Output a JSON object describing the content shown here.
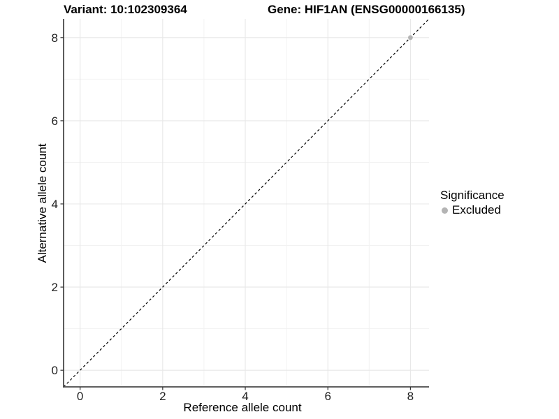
{
  "chart_data": {
    "type": "scatter",
    "title_left": "Variant: 10:102309364",
    "title_right": "Gene: HIF1AN (ENSG00000166135)",
    "xlabel": "Reference allele count",
    "ylabel": "Alternative allele count",
    "xlim": [
      -0.4,
      8.45
    ],
    "ylim": [
      -0.4,
      8.45
    ],
    "xticks": [
      0,
      2,
      4,
      6,
      8
    ],
    "yticks": [
      0,
      2,
      4,
      6,
      8
    ],
    "minor_xticks": [
      1,
      3,
      5,
      7
    ],
    "minor_yticks": [
      1,
      3,
      5,
      7
    ],
    "grid": "major and minor gridlines on white panel",
    "series": [
      {
        "name": "Excluded",
        "color": "#b4b4b4",
        "points": [
          {
            "x": 8,
            "y": 8
          }
        ]
      }
    ],
    "reference_line": {
      "kind": "identity y=x",
      "style": "dashed",
      "color": "#000000"
    },
    "legend": {
      "title": "Significance",
      "position": "right",
      "items": [
        {
          "label": "Excluded",
          "color": "#b4b4b4"
        }
      ]
    },
    "colors": {
      "background": "#ffffff",
      "grid_major": "#e7e7e7",
      "grid_minor": "#f2f2f2",
      "axis_line": "#4a4a4a",
      "tick": "#333333",
      "tick_label": "#1f1f1f",
      "text": "#000000"
    }
  }
}
